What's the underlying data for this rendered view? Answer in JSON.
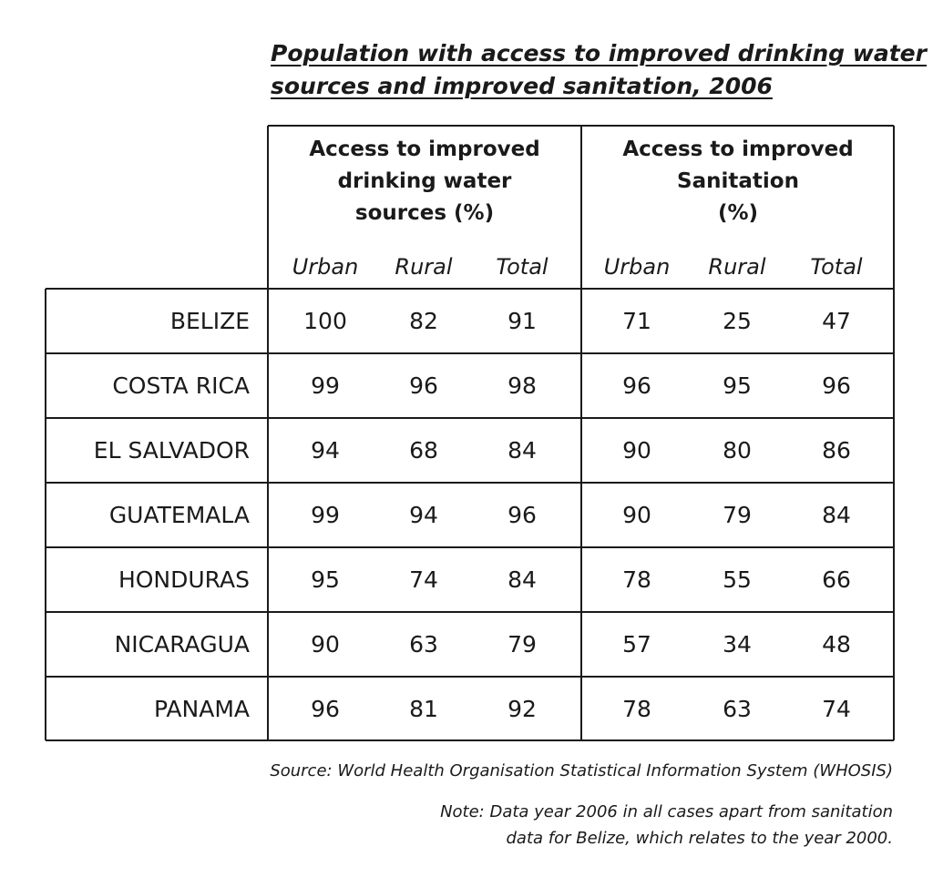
{
  "title_lines": [
    "Population with access to improved drinking water",
    "sources and improved sanitation, 2006"
  ],
  "table": {
    "groups": [
      {
        "label_lines": [
          "Access to improved",
          "drinking water",
          "sources (%)"
        ]
      },
      {
        "label_lines": [
          "Access to improved",
          "Sanitation",
          "(%)"
        ]
      }
    ],
    "subheaders": [
      "Urban",
      "Rural",
      "Total",
      "Urban",
      "Rural",
      "Total"
    ],
    "rows": [
      [
        "BELIZE",
        100,
        82,
        91,
        71,
        25,
        47
      ],
      [
        "COSTA RICA",
        99,
        96,
        98,
        96,
        95,
        96
      ],
      [
        "EL SALVADOR",
        94,
        68,
        84,
        90,
        80,
        86
      ],
      [
        "GUATEMALA",
        99,
        94,
        96,
        90,
        79,
        84
      ],
      [
        "HONDURAS",
        95,
        74,
        84,
        78,
        55,
        66
      ],
      [
        "NICARAGUA",
        90,
        63,
        79,
        57,
        34,
        48
      ],
      [
        "PANAMA",
        96,
        81,
        92,
        78,
        63,
        74
      ]
    ]
  },
  "source": "Source: World Health Organisation Statistical Information System (WHOSIS)",
  "note_lines": [
    "Note: Data year 2006 in all cases apart from sanitation",
    "data for Belize, which relates to the year 2000."
  ]
}
